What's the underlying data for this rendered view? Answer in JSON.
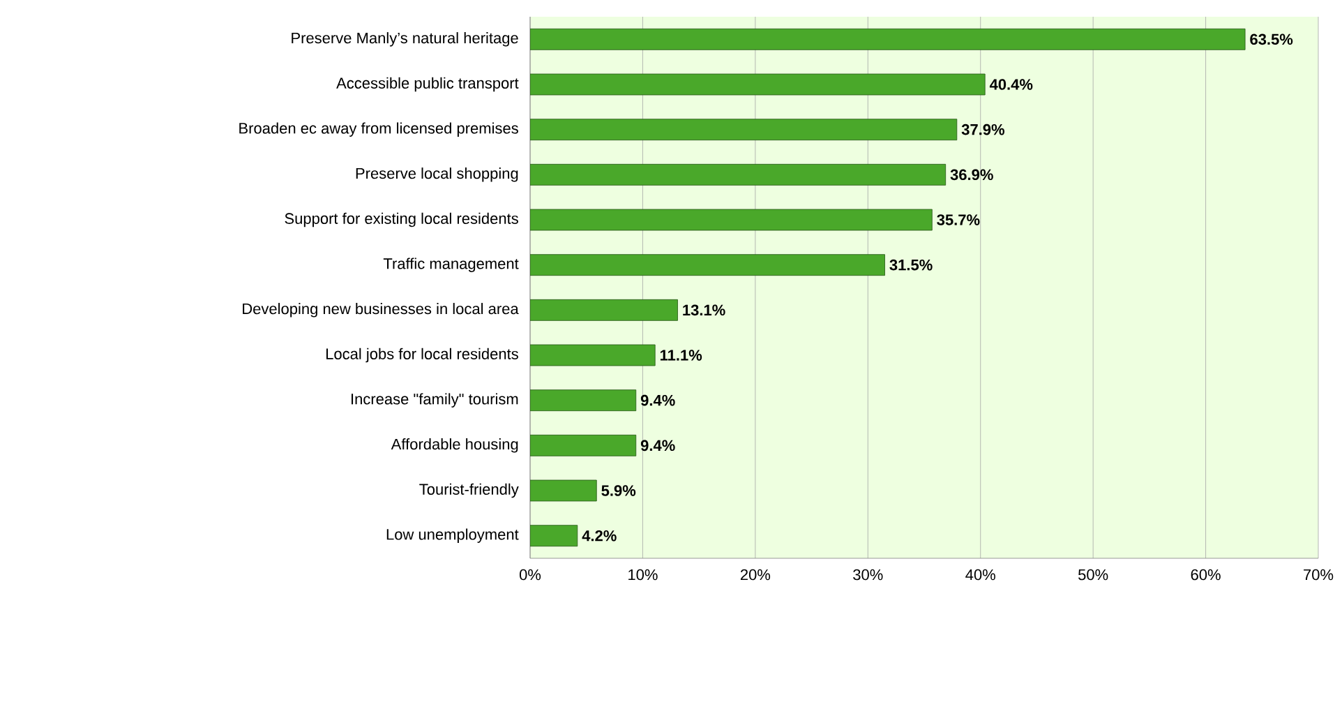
{
  "chart_data": {
    "type": "bar",
    "orientation": "horizontal",
    "categories": [
      "Preserve Manly’s natural heritage",
      "Accessible public transport",
      "Broaden ec away from licensed premises",
      "Preserve local shopping",
      "Support for existing local residents",
      "Traffic management",
      "Developing new businesses in local area",
      "Local jobs for local residents",
      "Increase \"family\" tourism",
      "Affordable housing",
      "Tourist-friendly",
      "Low unemployment"
    ],
    "values": [
      63.5,
      40.4,
      37.9,
      36.9,
      35.7,
      31.5,
      13.1,
      11.1,
      9.4,
      9.4,
      5.9,
      4.2
    ],
    "value_labels": [
      "63.5%",
      "40.4%",
      "37.9%",
      "36.9%",
      "35.7%",
      "31.5%",
      "13.1%",
      "11.1%",
      "9.4%",
      "9.4%",
      "5.9%",
      "4.2%"
    ],
    "color": "#4aa82a",
    "xlim": [
      0,
      70
    ],
    "xticks": [
      {
        "value": 0,
        "label": "0%"
      },
      {
        "value": 10,
        "label": "10%"
      },
      {
        "value": 20,
        "label": "20%"
      },
      {
        "value": 30,
        "label": "30%"
      },
      {
        "value": 40,
        "label": "40%"
      },
      {
        "value": 50,
        "label": "50%"
      },
      {
        "value": 60,
        "label": "60%"
      },
      {
        "value": 70,
        "label": "70%"
      }
    ],
    "grid": "x"
  }
}
